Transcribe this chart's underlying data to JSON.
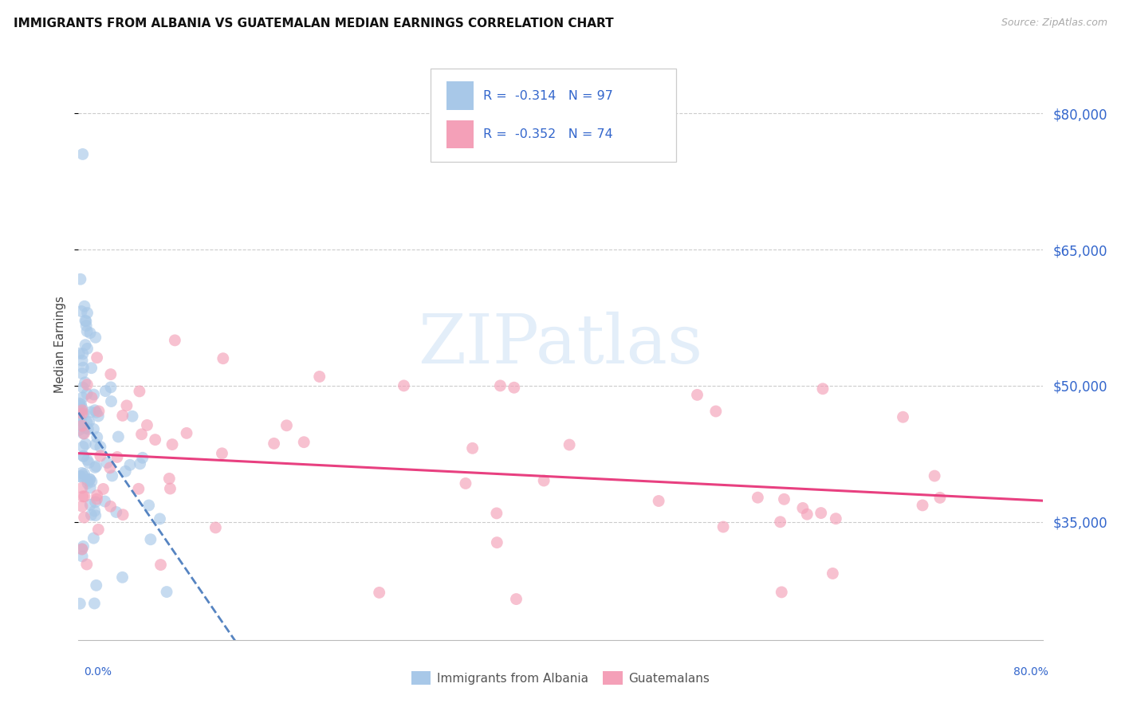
{
  "title": "IMMIGRANTS FROM ALBANIA VS GUATEMALAN MEDIAN EARNINGS CORRELATION CHART",
  "source": "Source: ZipAtlas.com",
  "ylabel": "Median Earnings",
  "yticks": [
    35000,
    50000,
    65000,
    80000
  ],
  "ytick_labels": [
    "$35,000",
    "$50,000",
    "$65,000",
    "$80,000"
  ],
  "legend_label1": "Immigrants from Albania",
  "legend_label2": "Guatemalans",
  "r1": "-0.314",
  "n1": "97",
  "r2": "-0.352",
  "n2": "74",
  "color_albania": "#a8c8e8",
  "color_guatemala": "#f4a0b8",
  "color_line_albania": "#4477bb",
  "color_line_guatemala": "#e84080",
  "color_text_blue": "#3366cc",
  "background_color": "#ffffff",
  "ylim_low": 22000,
  "ylim_high": 87000,
  "xlim_low": 0,
  "xlim_high": 80
}
